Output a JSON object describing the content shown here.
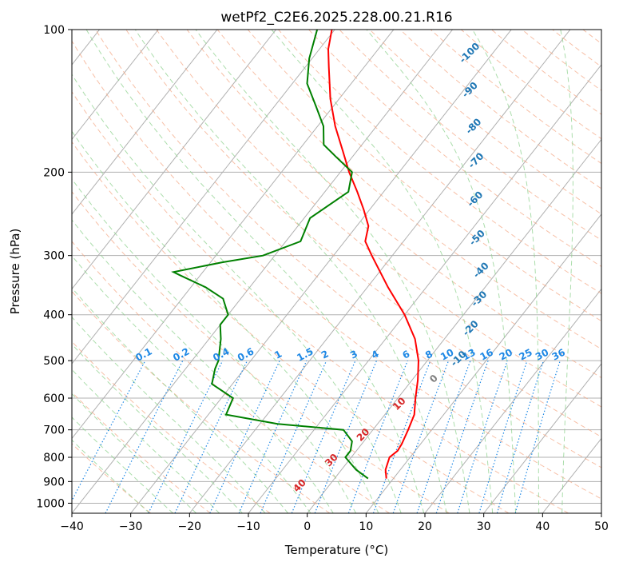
{
  "chart_data": {
    "type": "line",
    "title": "wetPf2_C2E6.2025.228.00.21.R16",
    "xlabel": "Temperature (°C)",
    "ylabel": "Pressure (hPa)",
    "xlim": [
      -40,
      50
    ],
    "ylim": [
      1050,
      100
    ],
    "y_scale": "log",
    "skew": "skew-T log-P",
    "grid": true,
    "xticks": [
      -40,
      -30,
      -20,
      -10,
      0,
      10,
      20,
      30,
      40,
      50
    ],
    "yticks": [
      1000,
      900,
      800,
      700,
      600,
      500,
      400,
      300,
      200,
      100
    ],
    "series": [
      {
        "role": "temperature",
        "color": "#ff0000",
        "points": [
          [
            887,
            8.8
          ],
          [
            850,
            7.5
          ],
          [
            800,
            6.5
          ],
          [
            775,
            7.0
          ],
          [
            750,
            6.8
          ],
          [
            700,
            6.0
          ],
          [
            650,
            5.0
          ],
          [
            600,
            3.0
          ],
          [
            550,
            1.0
          ],
          [
            500,
            -1.5
          ],
          [
            450,
            -5.0
          ],
          [
            400,
            -10.0
          ],
          [
            350,
            -16.5
          ],
          [
            300,
            -23.5
          ],
          [
            280,
            -26.5
          ],
          [
            260,
            -28.0
          ],
          [
            240,
            -31.0
          ],
          [
            220,
            -34.5
          ],
          [
            200,
            -38.5
          ],
          [
            180,
            -42.5
          ],
          [
            160,
            -47.0
          ],
          [
            140,
            -51.5
          ],
          [
            120,
            -56.0
          ],
          [
            110,
            -58.5
          ],
          [
            100,
            -60.5
          ]
        ]
      },
      {
        "role": "dewpoint",
        "color": "#008000",
        "points": [
          [
            887,
            5.7
          ],
          [
            850,
            2.5
          ],
          [
            800,
            -1.0
          ],
          [
            775,
            -1.0
          ],
          [
            740,
            -2.0
          ],
          [
            700,
            -5.0
          ],
          [
            680,
            -17.0
          ],
          [
            650,
            -27.0
          ],
          [
            600,
            -28.0
          ],
          [
            560,
            -33.5
          ],
          [
            520,
            -35.0
          ],
          [
            500,
            -35.5
          ],
          [
            450,
            -38.0
          ],
          [
            420,
            -40.0
          ],
          [
            400,
            -40.0
          ],
          [
            370,
            -43.0
          ],
          [
            350,
            -47.5
          ],
          [
            330,
            -53.5
          ],
          [
            325,
            -55.0
          ],
          [
            310,
            -48.0
          ],
          [
            300,
            -42.0
          ],
          [
            280,
            -37.5
          ],
          [
            250,
            -39.0
          ],
          [
            220,
            -36.0
          ],
          [
            200,
            -38.0
          ],
          [
            185,
            -43.0
          ],
          [
            175,
            -46.5
          ],
          [
            160,
            -49.0
          ],
          [
            145,
            -53.0
          ],
          [
            130,
            -57.5
          ],
          [
            115,
            -60.5
          ],
          [
            100,
            -63.0
          ]
        ]
      }
    ],
    "dry_adiabats_label": "",
    "moist_adiabat_labels": [
      "-100",
      "-90",
      "-80",
      "-70",
      "-60",
      "-50",
      "-40",
      "-30",
      "-20",
      "-10",
      "0",
      "10",
      "20",
      "30",
      "40"
    ],
    "mixing_ratio_labels": [
      "0.1",
      "0.2",
      "0.4",
      "0.6",
      "1",
      "1.5",
      "2",
      "3",
      "4",
      "6",
      "8",
      "10",
      "13",
      "16",
      "20",
      "25",
      "30",
      "36"
    ],
    "colors": {
      "isotherm": "#b0b0b0",
      "isobar": "#b0b0b0",
      "dry_adiabat": "#f4a582",
      "moist_adiabat": "#8fd18f",
      "mixing_ratio": "#1e88e5",
      "label_blue": "#1f77b4",
      "label_red": "#d62728",
      "label_gray": "#7f7f7f"
    }
  }
}
